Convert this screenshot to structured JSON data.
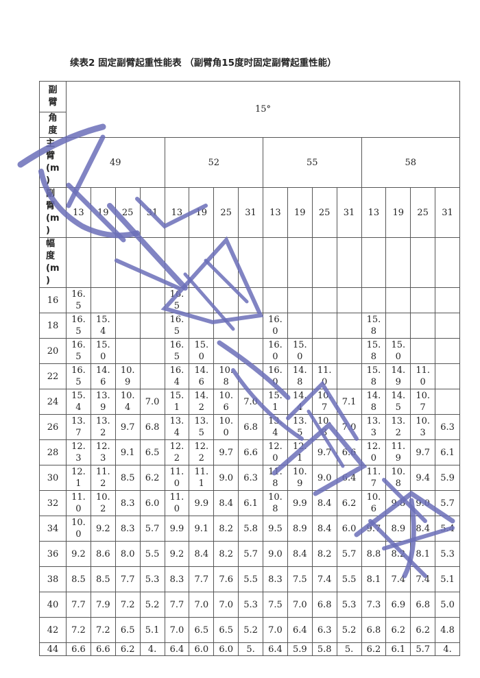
{
  "title": "续表2 固定副臂起重性能表 （副臂角15度时固定副臂起重性能）",
  "header": {
    "angle_label": [
      "副",
      "臂",
      "角",
      "度"
    ],
    "angle_value": "15°",
    "main_arm_label": "主臂(m)",
    "sub_arm_label": "副臂(m)",
    "radius_label": "幅度(m)",
    "main_arm_lengths": [
      "49",
      "52",
      "55",
      "58"
    ],
    "sub_arm_lengths": [
      "13",
      "19",
      "25",
      "31"
    ]
  },
  "rows": [
    {
      "r": "16",
      "v": [
        "16.5",
        "",
        "",
        "",
        "16.5",
        "",
        "",
        "",
        "",
        "",
        "",
        "",
        "",
        "",
        "",
        ""
      ]
    },
    {
      "r": "18",
      "v": [
        "16.5",
        "15.4",
        "",
        "",
        "16.5",
        "",
        "",
        "",
        "16.0",
        "",
        "",
        "",
        "15.8",
        "",
        "",
        ""
      ]
    },
    {
      "r": "20",
      "v": [
        "16.5",
        "15.0",
        "",
        "",
        "16.5",
        "15.0",
        "",
        "",
        "16.0",
        "15.0",
        "",
        "",
        "15.8",
        "15.0",
        "",
        ""
      ]
    },
    {
      "r": "22",
      "v": [
        "16.5",
        "14.6",
        "10.9",
        "",
        "16.4",
        "14.6",
        "10.8",
        "",
        "16.0",
        "14.8",
        "11.0",
        "",
        "15.8",
        "14.9",
        "11.0",
        ""
      ]
    },
    {
      "r": "24",
      "v": [
        "15.4",
        "13.9",
        "10.4",
        "7.0",
        "15.1",
        "14.2",
        "10.6",
        "7.0",
        "15.1",
        "14.4",
        "10.7",
        "7.1",
        "14.8",
        "14.5",
        "10.7",
        ""
      ]
    },
    {
      "r": "26",
      "v": [
        "13.7",
        "13.2",
        "9.7",
        "6.8",
        "13.4",
        "13.5",
        "10.0",
        "6.8",
        "13.4",
        "13.5",
        "10.3",
        "7.0",
        "13.3",
        "13.2",
        "10.3",
        "6.3"
      ]
    },
    {
      "r": "28",
      "v": [
        "12.3",
        "12.3",
        "9.1",
        "6.5",
        "12.2",
        "12.2",
        "9.7",
        "6.6",
        "12.0",
        "12.1",
        "9.7",
        "6.6",
        "12.0",
        "11.9",
        "9.7",
        "6.1"
      ]
    },
    {
      "r": "30",
      "v": [
        "12.1",
        "11.2",
        "8.5",
        "6.2",
        "11.0",
        "11.1",
        "9.0",
        "6.3",
        "11.8",
        "10.9",
        "9.0",
        "6.4",
        "11.7",
        "10.8",
        "9.4",
        "5.9"
      ]
    },
    {
      "r": "32",
      "v": [
        "11.0",
        "10.2",
        "8.3",
        "6.0",
        "11.0",
        "9.9",
        "8.4",
        "6.1",
        "10.8",
        "9.9",
        "8.4",
        "6.2",
        "10.6",
        "9.8",
        "9.0",
        "5.7"
      ]
    },
    {
      "r": "34",
      "v": [
        "10.0",
        "9.2",
        "8.3",
        "5.7",
        "9.9",
        "9.1",
        "8.2",
        "5.8",
        "9.5",
        "8.9",
        "8.4",
        "6.0",
        "9.7",
        "8.9",
        "8.4",
        "5.4"
      ]
    },
    {
      "r": "36",
      "v": [
        "9.2",
        "8.6",
        "8.0",
        "5.5",
        "9.2",
        "8.4",
        "8.2",
        "5.7",
        "9.0",
        "8.4",
        "8.2",
        "5.7",
        "8.8",
        "8.2",
        "8.1",
        "5.3"
      ]
    },
    {
      "r": "38",
      "v": [
        "8.5",
        "8.5",
        "7.7",
        "5.3",
        "8.3",
        "7.7",
        "7.6",
        "5.5",
        "8.3",
        "7.5",
        "7.4",
        "5.5",
        "8.1",
        "7.4",
        "7.4",
        "5.1"
      ]
    },
    {
      "r": "40",
      "v": [
        "7.7",
        "7.9",
        "7.2",
        "5.2",
        "7.7",
        "7.0",
        "7.0",
        "5.3",
        "7.5",
        "7.0",
        "6.8",
        "5.3",
        "7.3",
        "6.9",
        "6.8",
        "5.0"
      ]
    },
    {
      "r": "42",
      "v": [
        "7.2",
        "7.2",
        "6.5",
        "5.1",
        "7.0",
        "6.5",
        "6.5",
        "5.2",
        "7.0",
        "6.4",
        "6.3",
        "5.2",
        "6.8",
        "6.2",
        "6.2",
        "4.8"
      ]
    },
    {
      "r": "44",
      "v": [
        "6.6",
        "6.6",
        "6.2",
        "4.",
        "6.4",
        "6.0",
        "6.0",
        "5.",
        "6.4",
        "5.9",
        "5.8",
        "5.",
        "6.2",
        "6.1",
        "5.7",
        "4."
      ]
    }
  ],
  "colors": {
    "watermark": "#6b6eb8",
    "border": "#555555"
  }
}
